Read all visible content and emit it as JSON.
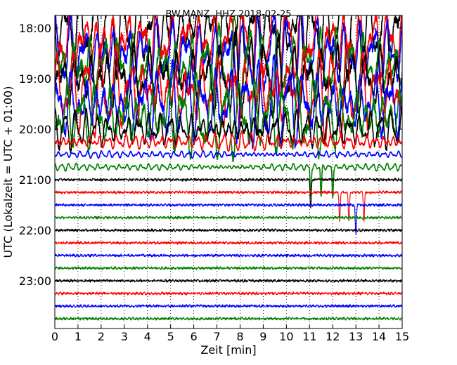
{
  "chart_data": {
    "type": "line",
    "title": "BW.MANZ..HHZ 2018-02-25",
    "xlabel": "Zeit  [min]",
    "ylabel": "UTC (Lokalzeit = UTC + 01:00)",
    "xlim": [
      0,
      15
    ],
    "x_ticks": [
      "0",
      "1",
      "2",
      "3",
      "4",
      "5",
      "6",
      "7",
      "8",
      "9",
      "10",
      "11",
      "12",
      "13",
      "14",
      "15"
    ],
    "y_ticks": [
      "18:00",
      "19:00",
      "20:00",
      "21:00",
      "22:00",
      "23:00"
    ],
    "grid": "dotted vertical lines at every minute",
    "trace_colors": [
      "#000000",
      "#ff0000",
      "#0000ff",
      "#008000"
    ],
    "traces_per_hour": 4,
    "start_hour": 18,
    "trace_count": 24,
    "trace_activity": [
      {
        "time": "18:00",
        "amplitude": "clipped"
      },
      {
        "time": "18:15",
        "amplitude": "clipped"
      },
      {
        "time": "18:30",
        "amplitude": "clipped"
      },
      {
        "time": "18:45",
        "amplitude": "clipped"
      },
      {
        "time": "19:00",
        "amplitude": "clipped"
      },
      {
        "time": "19:15",
        "amplitude": "clipped"
      },
      {
        "time": "19:30",
        "amplitude": "clipped"
      },
      {
        "time": "19:45",
        "amplitude": "clipped"
      },
      {
        "time": "20:00",
        "amplitude": "large"
      },
      {
        "time": "20:15",
        "amplitude": "medium"
      },
      {
        "time": "20:30",
        "amplitude": "small"
      },
      {
        "time": "20:45",
        "amplitude": "small",
        "spikes_min": [
          11.05,
          11.5,
          12.0
        ]
      },
      {
        "time": "21:00",
        "amplitude": "low",
        "spikes_min": [
          11.05
        ]
      },
      {
        "time": "21:15",
        "amplitude": "low",
        "spikes_min": [
          12.3,
          12.7,
          13.35
        ]
      },
      {
        "time": "21:30",
        "amplitude": "low",
        "spikes_min": [
          13.0
        ]
      },
      {
        "time": "21:45",
        "amplitude": "low"
      },
      {
        "time": "22:00",
        "amplitude": "low"
      },
      {
        "time": "22:15",
        "amplitude": "low"
      },
      {
        "time": "22:30",
        "amplitude": "low"
      },
      {
        "time": "22:45",
        "amplitude": "low"
      },
      {
        "time": "23:00",
        "amplitude": "low"
      },
      {
        "time": "23:15",
        "amplitude": "low"
      },
      {
        "time": "23:30",
        "amplitude": "low"
      },
      {
        "time": "23:45",
        "amplitude": "low"
      }
    ]
  }
}
